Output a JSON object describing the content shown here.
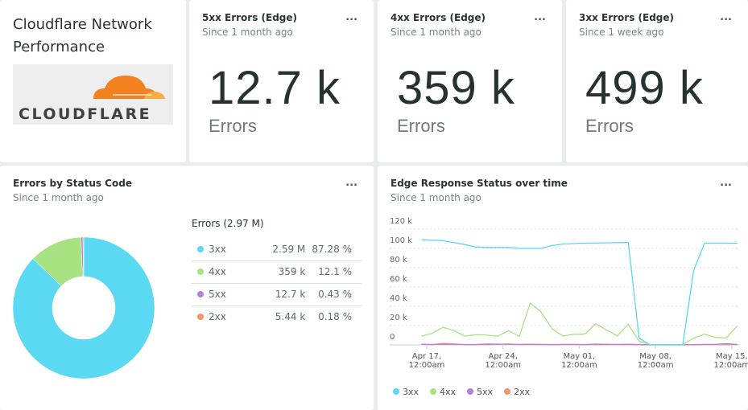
{
  "title_card": {
    "title": "Cloudflare Network Performance",
    "logo_text": "CLOUDFLARE"
  },
  "stat_cards": [
    {
      "title": "5xx Errors (Edge)",
      "subtitle": "Since 1 month ago",
      "value": "12.7 k",
      "unit": "Errors",
      "menu": "..."
    },
    {
      "title": "4xx Errors (Edge)",
      "subtitle": "Since 1 month ago",
      "value": "359 k",
      "unit": "Errors",
      "menu": "..."
    },
    {
      "title": "3xx Errors (Edge)",
      "subtitle": "Since 1 week ago",
      "value": "499 k",
      "unit": "Errors",
      "menu": "..."
    }
  ],
  "colors": {
    "3xx": "#5bd8f2",
    "4xx": "#a8e281",
    "5xx": "#b77fe0",
    "2xx": "#f8936b"
  },
  "pie_panel": {
    "title": "Errors by Status Code",
    "subtitle": "Since 1 month ago",
    "menu": "...",
    "table_header": "Errors (2.97 M)",
    "rows": [
      {
        "label": "3xx",
        "value": "2.59 M",
        "percent": "87.28 %"
      },
      {
        "label": "4xx",
        "value": "359 k",
        "percent": "12.1 %"
      },
      {
        "label": "5xx",
        "value": "12.7 k",
        "percent": "0.43 %"
      },
      {
        "label": "2xx",
        "value": "5.44 k",
        "percent": "0.18 %"
      }
    ]
  },
  "line_panel": {
    "title": "Edge Response Status over time",
    "subtitle": "Since 1 month ago",
    "menu": "..."
  },
  "chart_data": [
    {
      "type": "pie",
      "donut": true,
      "categories": [
        "3xx",
        "4xx",
        "5xx",
        "2xx"
      ],
      "values": [
        87.28,
        12.1,
        0.43,
        0.18
      ]
    },
    {
      "type": "line",
      "ylim": [
        0,
        120000
      ],
      "yticks": [
        "0",
        "20 k",
        "40 k",
        "60 k",
        "80 k",
        "100 k",
        "120 k"
      ],
      "grid": true,
      "legend": "bottom",
      "xticks": [
        [
          "Apr 17,",
          "12:00am"
        ],
        [
          "Apr 24,",
          "12:00am"
        ],
        [
          "May 01,",
          "12:00am"
        ],
        [
          "May 08,",
          "12:00am"
        ],
        [
          "May 15,",
          "12:00am"
        ]
      ],
      "xtick_dates": [
        "Apr 17",
        "Apr 24",
        "May 01",
        "May 08",
        "May 15"
      ],
      "x": [
        "Apr 16 12pm",
        "Apr 17 12pm",
        "Apr 18 12pm",
        "Apr 19 12pm",
        "Apr 20 12pm",
        "Apr 21 12pm",
        "Apr 22 12pm",
        "Apr 23 12pm",
        "Apr 24 12pm",
        "Apr 25 12pm",
        "Apr 26 12pm",
        "Apr 27 12pm",
        "Apr 28 12pm",
        "Apr 29 12pm",
        "Apr 30 12pm",
        "May 01 12pm",
        "May 02 12pm",
        "May 03 12pm",
        "May 04 12pm",
        "May 05 12pm",
        "May 06 12pm",
        "May 07 12pm",
        "May 08 12pm",
        "May 09 12pm",
        "May 10 12pm",
        "May 11 12pm",
        "May 12 12pm",
        "May 13 12pm",
        "May 14 12pm",
        "May 15 12pm"
      ],
      "series": [
        {
          "name": "3xx",
          "values": [
            109000,
            108500,
            108000,
            106000,
            104000,
            101500,
            101000,
            101000,
            101000,
            100000,
            100000,
            100000,
            103000,
            104500,
            105000,
            105500,
            105500,
            105700,
            106000,
            106000,
            7000,
            0,
            0,
            0,
            0,
            77000,
            105500,
            105500,
            105500,
            105300
          ]
        },
        {
          "name": "4xx",
          "values": [
            9100,
            11900,
            18300,
            14700,
            9100,
            10500,
            10200,
            8900,
            14700,
            8900,
            43200,
            34100,
            16600,
            9100,
            11100,
            11100,
            21900,
            15500,
            9400,
            21300,
            3600,
            300,
            300,
            300,
            300,
            6900,
            11100,
            7800,
            7200,
            19400
          ]
        },
        {
          "name": "5xx",
          "values": [
            500,
            400,
            600,
            500,
            400,
            500,
            900,
            800,
            600,
            500,
            700,
            500,
            400,
            500,
            500,
            400,
            800,
            600,
            500,
            700,
            400,
            200,
            200,
            200,
            200,
            400,
            500,
            600,
            1200,
            500
          ]
        },
        {
          "name": "2xx",
          "values": [
            700,
            400,
            1500,
            1000,
            300,
            300,
            400,
            500,
            1000,
            300,
            400,
            300,
            300,
            300,
            300,
            300,
            300,
            300,
            300,
            300,
            200,
            100,
            100,
            100,
            100,
            200,
            300,
            300,
            300,
            300
          ]
        }
      ]
    }
  ]
}
